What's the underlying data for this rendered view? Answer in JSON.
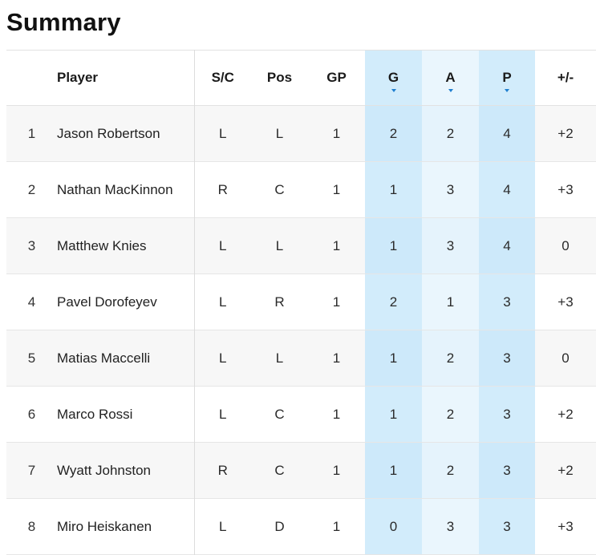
{
  "page_title": "Summary",
  "columns": {
    "rank": "",
    "player": "Player",
    "sc": "S/C",
    "pos": "Pos",
    "gp": "GP",
    "g": "G",
    "a": "A",
    "p": "P",
    "pm": "+/-"
  },
  "colors": {
    "sorted_light": "#eaf6fd",
    "sorted_dark": "#d2ecfb",
    "sort_indicator": "#1f7fd0"
  },
  "rows": [
    {
      "rank": "1",
      "player": "Jason Robertson",
      "sc": "L",
      "pos": "L",
      "gp": "1",
      "g": "2",
      "a": "2",
      "p": "4",
      "pm": "+2"
    },
    {
      "rank": "2",
      "player": "Nathan MacKinnon",
      "sc": "R",
      "pos": "C",
      "gp": "1",
      "g": "1",
      "a": "3",
      "p": "4",
      "pm": "+3"
    },
    {
      "rank": "3",
      "player": "Matthew Knies",
      "sc": "L",
      "pos": "L",
      "gp": "1",
      "g": "1",
      "a": "3",
      "p": "4",
      "pm": "0"
    },
    {
      "rank": "4",
      "player": "Pavel Dorofeyev",
      "sc": "L",
      "pos": "R",
      "gp": "1",
      "g": "2",
      "a": "1",
      "p": "3",
      "pm": "+3"
    },
    {
      "rank": "5",
      "player": "Matias Maccelli",
      "sc": "L",
      "pos": "L",
      "gp": "1",
      "g": "1",
      "a": "2",
      "p": "3",
      "pm": "0"
    },
    {
      "rank": "6",
      "player": "Marco Rossi",
      "sc": "L",
      "pos": "C",
      "gp": "1",
      "g": "1",
      "a": "2",
      "p": "3",
      "pm": "+2"
    },
    {
      "rank": "7",
      "player": "Wyatt Johnston",
      "sc": "R",
      "pos": "C",
      "gp": "1",
      "g": "1",
      "a": "2",
      "p": "3",
      "pm": "+2"
    },
    {
      "rank": "8",
      "player": "Miro Heiskanen",
      "sc": "L",
      "pos": "D",
      "gp": "1",
      "g": "0",
      "a": "3",
      "p": "3",
      "pm": "+3"
    }
  ]
}
